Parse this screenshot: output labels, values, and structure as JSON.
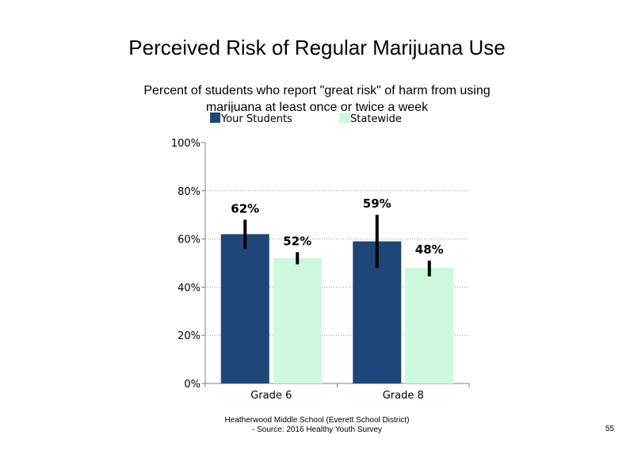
{
  "chart_data": {
    "type": "bar",
    "title": "Perceived Risk of Regular Marijuana Use",
    "subtitle": "Percent of students who report \"great risk\" of harm from using marijuana at least once or twice a week",
    "categories": [
      "Grade 6",
      "Grade 8"
    ],
    "series": [
      {
        "name": "Your Students",
        "color": "#1f4678",
        "values": [
          62,
          59
        ],
        "labels": [
          "62%",
          "59%"
        ],
        "error_low": [
          56,
          48
        ],
        "error_high": [
          68,
          70
        ]
      },
      {
        "name": "Statewide",
        "color": "#ccf9dc",
        "values": [
          52,
          48
        ],
        "labels": [
          "52%",
          "48%"
        ],
        "error_low": [
          49.5,
          44.5
        ],
        "error_high": [
          54.5,
          51
        ]
      }
    ],
    "ylim": [
      0,
      100
    ],
    "yticks": [
      0,
      20,
      40,
      60,
      80,
      100
    ],
    "ytick_labels": [
      "0%",
      "20%",
      "40%",
      "60%",
      "80%",
      "100%"
    ],
    "grid": "dotted-horizontal",
    "legend": "top-left"
  },
  "footer": {
    "line1": "Heatherwood Middle School (Everett School District)",
    "line2": "- Source: 2016 Healthy  Youth Survey"
  },
  "page_number": "55"
}
